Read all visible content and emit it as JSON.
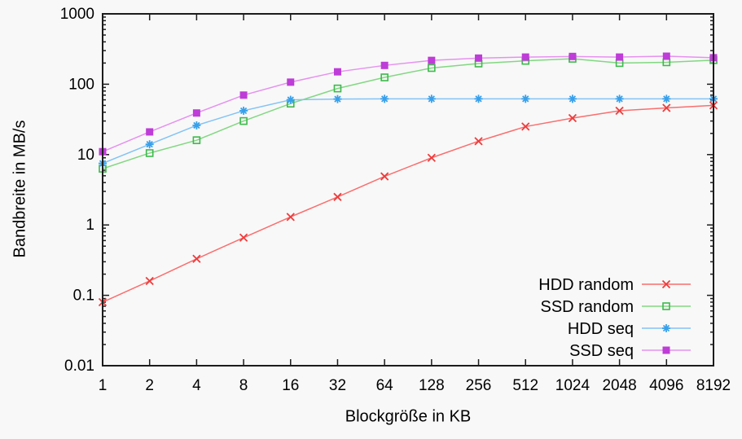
{
  "chart_data": {
    "type": "line",
    "title": "",
    "xlabel": "Blockgröße in KB",
    "ylabel": "Bandbreite in MB/s",
    "x_scale": "log2",
    "y_scale": "log10",
    "xlim": [
      1,
      8192
    ],
    "ylim": [
      0.01,
      1000
    ],
    "grid": "off",
    "legend_position": "inside-bottom-right",
    "x": [
      1,
      2,
      4,
      8,
      16,
      32,
      64,
      128,
      256,
      512,
      1024,
      2048,
      4096,
      8192
    ],
    "x_tick_labels": [
      "1",
      "2",
      "4",
      "8",
      "16",
      "32",
      "64",
      "128",
      "256",
      "512",
      "1024",
      "2048",
      "4096",
      "8192"
    ],
    "y_ticks": [
      0.01,
      0.1,
      1,
      10,
      100,
      1000
    ],
    "y_tick_labels": [
      "0.01",
      "0.1",
      "1",
      "10",
      "100",
      "1000"
    ],
    "text_color": "#000000",
    "frame_color": "#1c1c1c",
    "series": [
      {
        "name": "HDD random",
        "marker": "cross",
        "color": "#ee3c3c",
        "line_color": "#fa6e6e",
        "values": [
          0.08,
          0.16,
          0.33,
          0.66,
          1.3,
          2.5,
          4.9,
          9,
          15.5,
          25,
          33,
          42,
          46,
          50
        ]
      },
      {
        "name": "SSD random",
        "marker": "open-square",
        "color": "#3cb94b",
        "line_color": "#82d782",
        "values": [
          6.3,
          10.5,
          16,
          30,
          53,
          87,
          125,
          170,
          197,
          215,
          230,
          200,
          205,
          220
        ]
      },
      {
        "name": "HDD seq",
        "marker": "star",
        "color": "#37a0eb",
        "line_color": "#82c3f5",
        "values": [
          7.5,
          14,
          26,
          42,
          60,
          61.5,
          62,
          62,
          62,
          62,
          62,
          62,
          62,
          62
        ]
      },
      {
        "name": "SSD seq",
        "marker": "filled-square",
        "color": "#be3cd7",
        "line_color": "#e691f0",
        "values": [
          11,
          21,
          39,
          70,
          107,
          150,
          185,
          218,
          235,
          243,
          248,
          243,
          250,
          238
        ]
      }
    ]
  }
}
